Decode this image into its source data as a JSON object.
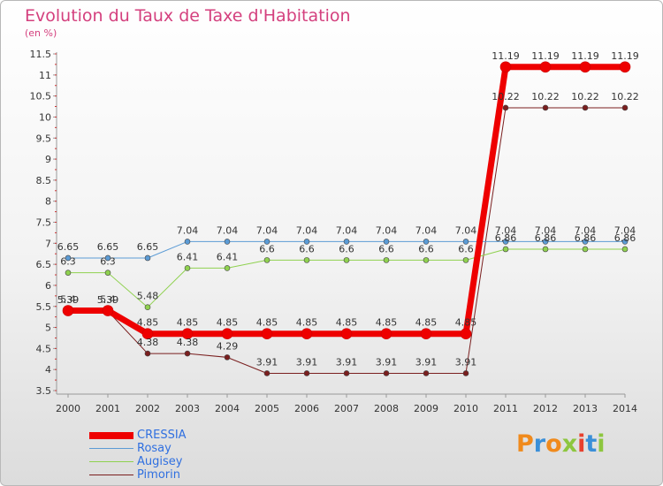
{
  "title": "Evolution du Taux de Taxe d'Habitation",
  "unit": "(en %)",
  "logo": {
    "letters": [
      "P",
      "r",
      "o",
      "x",
      "i",
      "t",
      "i"
    ],
    "colors": [
      "#f08a1c",
      "#3a8fd8",
      "#f08a1c",
      "#8dc63f",
      "#e8402e",
      "#3a8fd8",
      "#8dc63f"
    ]
  },
  "chart_data": {
    "type": "line",
    "x": [
      "2000",
      "2001",
      "2002",
      "2003",
      "2004",
      "2005",
      "2006",
      "2007",
      "2008",
      "2009",
      "2010",
      "2011",
      "2012",
      "2013",
      "2014"
    ],
    "ylim": [
      3.5,
      11.5
    ],
    "yticks": [
      "3.5",
      "4",
      "4.5",
      "5",
      "5.5",
      "6",
      "6.5",
      "7",
      "7.5",
      "8",
      "8.5",
      "9",
      "9.5",
      "10",
      "10.5",
      "11",
      "11.5"
    ],
    "grid": false,
    "legend_position": "bottom-left",
    "series": [
      {
        "name": "Pimorin",
        "color": "#7a1f1f",
        "width": 1,
        "values": [
          5.39,
          5.39,
          4.38,
          4.38,
          4.29,
          3.91,
          3.91,
          3.91,
          3.91,
          3.91,
          3.91,
          10.22,
          10.22,
          10.22,
          10.22
        ],
        "labels": [
          "5.39",
          "5.39",
          "4.38",
          "4.38",
          "4.29",
          "3.91",
          "3.91",
          "3.91",
          "3.91",
          "3.91",
          "3.91",
          "10.22",
          "10.22",
          "10.22",
          "10.22"
        ]
      },
      {
        "name": "Augisey",
        "color": "#8fd14f",
        "width": 1,
        "values": [
          6.3,
          6.3,
          5.48,
          6.41,
          6.41,
          6.6,
          6.6,
          6.6,
          6.6,
          6.6,
          6.6,
          6.86,
          6.86,
          6.86,
          6.86
        ],
        "labels": [
          "6.3",
          "6.3",
          "5.48",
          "6.41",
          "6.41",
          "6.6",
          "6.6",
          "6.6",
          "6.6",
          "6.6",
          "6.6",
          "6.86",
          "6.86",
          "6.86",
          "6.86"
        ]
      },
      {
        "name": "Rosay",
        "color": "#5b9bd5",
        "width": 1,
        "values": [
          6.65,
          6.65,
          6.65,
          7.04,
          7.04,
          7.04,
          7.04,
          7.04,
          7.04,
          7.04,
          7.04,
          7.04,
          7.04,
          7.04,
          7.04
        ],
        "labels": [
          "6.65",
          "6.65",
          "6.65",
          "7.04",
          "7.04",
          "7.04",
          "7.04",
          "7.04",
          "7.04",
          "7.04",
          "7.04",
          "7.04",
          "7.04",
          "7.04",
          "7.04"
        ]
      },
      {
        "name": "CRESSIA",
        "color": "#ee0000",
        "width": 7,
        "values": [
          5.4,
          5.4,
          4.85,
          4.85,
          4.85,
          4.85,
          4.85,
          4.85,
          4.85,
          4.85,
          4.85,
          11.19,
          11.19,
          11.19,
          11.19
        ],
        "labels": [
          "5.4",
          "5.4",
          "4.85",
          "4.85",
          "4.85",
          "4.85",
          "4.85",
          "4.85",
          "4.85",
          "4.85",
          "4.85",
          "11.19",
          "11.19",
          "11.19",
          "11.19"
        ]
      }
    ],
    "legend_order": [
      "CRESSIA",
      "Rosay",
      "Augisey",
      "Pimorin"
    ]
  }
}
